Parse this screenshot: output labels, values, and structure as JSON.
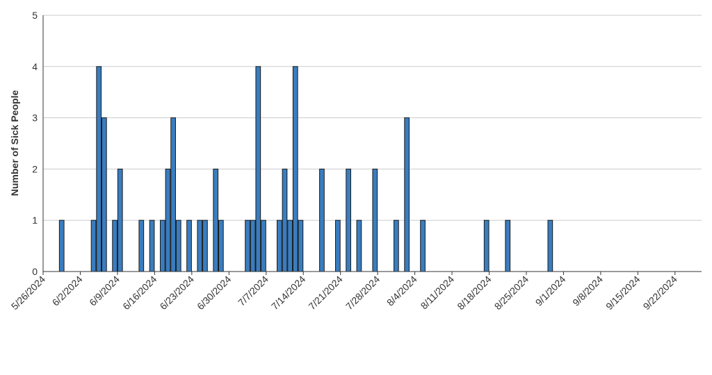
{
  "chart_data": {
    "type": "bar",
    "title": "",
    "xlabel": "",
    "ylabel": "Number of Sick People",
    "ylim": [
      0,
      5
    ],
    "yticks": [
      0,
      1,
      2,
      3,
      4,
      5
    ],
    "xlim": [
      "2024-05-26",
      "2024-09-27"
    ],
    "xtick_labels": [
      "5/26/2024",
      "6/2/2024",
      "6/9/2024",
      "6/16/2024",
      "6/23/2024",
      "6/30/2024",
      "7/7/2024",
      "7/14/2024",
      "7/21/2024",
      "7/28/2024",
      "8/4/2024",
      "8/11/2024",
      "8/18/2024",
      "8/25/2024",
      "9/1/2024",
      "9/8/2024",
      "9/15/2024",
      "9/22/2024"
    ],
    "xtick_dates": [
      "2024-05-26",
      "2024-06-02",
      "2024-06-09",
      "2024-06-16",
      "2024-06-23",
      "2024-06-30",
      "2024-07-07",
      "2024-07-14",
      "2024-07-21",
      "2024-07-28",
      "2024-08-04",
      "2024-08-11",
      "2024-08-18",
      "2024-08-25",
      "2024-09-01",
      "2024-09-08",
      "2024-09-15",
      "2024-09-22"
    ],
    "grid": true,
    "bar_color": "#3a7dbf",
    "bar_edge_color": "#1a1a1a",
    "grid_color": "#cccccc",
    "axis_color": "#333333",
    "series": [
      {
        "x": [
          "2024-05-29",
          "2024-06-04",
          "2024-06-05",
          "2024-06-06",
          "2024-06-08",
          "2024-06-09",
          "2024-06-13",
          "2024-06-15",
          "2024-06-17",
          "2024-06-18",
          "2024-06-19",
          "2024-06-20",
          "2024-06-22",
          "2024-06-24",
          "2024-06-25",
          "2024-06-27",
          "2024-06-28",
          "2024-07-03",
          "2024-07-04",
          "2024-07-05",
          "2024-07-06",
          "2024-07-09",
          "2024-07-10",
          "2024-07-11",
          "2024-07-12",
          "2024-07-13",
          "2024-07-17",
          "2024-07-20",
          "2024-07-22",
          "2024-07-24",
          "2024-07-27",
          "2024-07-31",
          "2024-08-02",
          "2024-08-05",
          "2024-08-17",
          "2024-08-21",
          "2024-08-29",
          "2024-09-25"
        ],
        "values": [
          1,
          1,
          4,
          3,
          1,
          2,
          1,
          1,
          1,
          2,
          3,
          1,
          1,
          1,
          1,
          2,
          1,
          1,
          1,
          4,
          1,
          1,
          2,
          1,
          4,
          1,
          2,
          1,
          2,
          1,
          2,
          1,
          3,
          1,
          1,
          1,
          1,
          0
        ]
      }
    ]
  }
}
